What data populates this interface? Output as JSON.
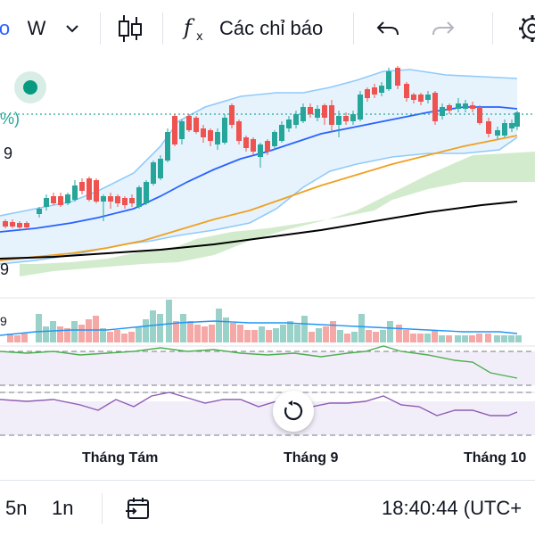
{
  "toolbar": {
    "interval": "W",
    "indicators_label": "Các chỉ báo"
  },
  "price_axis": {
    "pct_label": "%)",
    "tick_a": "9",
    "tick_b": "9",
    "tick_c": "9"
  },
  "time_axis": {
    "labels": [
      "Tháng Tám",
      "Tháng 9",
      "Tháng 10"
    ]
  },
  "bottom_bar": {
    "range_5d": "5n",
    "range_1d": "1n",
    "clock": "18:40:44 (UTC+"
  },
  "colors": {
    "up": "#26a69a",
    "down": "#ef5350",
    "bb_band": "#90caf9",
    "ma_blue": "#2962ff",
    "ma_orange": "#f0a020",
    "ma_black": "#000000",
    "cloud": "#b9e0b0",
    "rsi": "#4caf50",
    "osc": "#8e5bb5"
  }
}
